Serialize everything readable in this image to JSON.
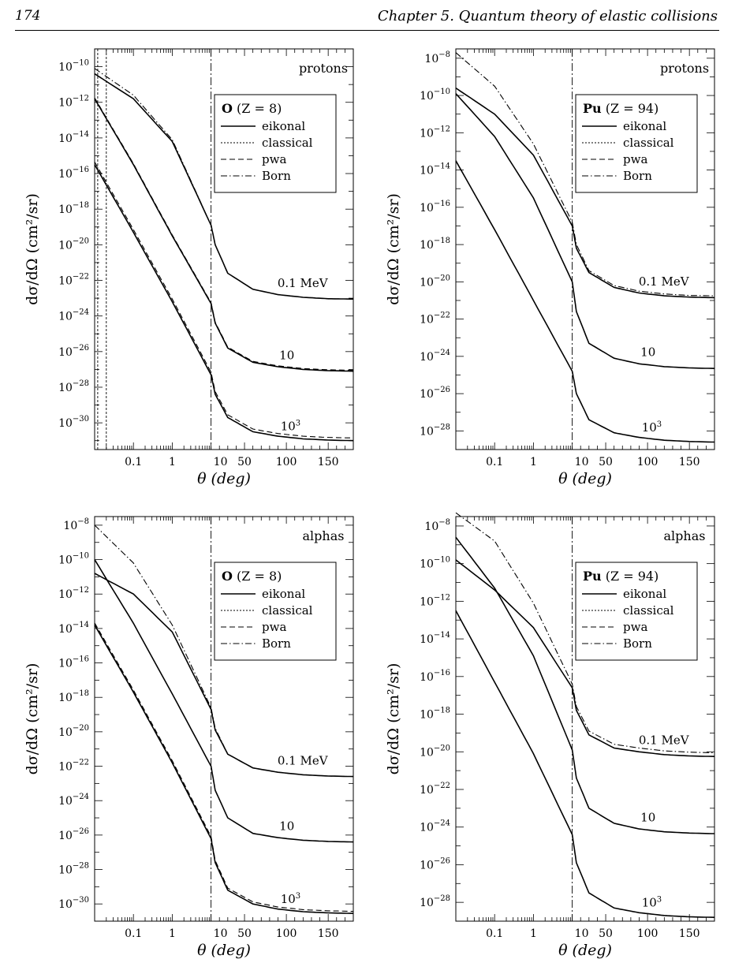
{
  "page": {
    "page_number": "174",
    "running_head": "Chapter 5.  Quantum theory of elastic collisions"
  },
  "legend_entries": [
    {
      "label": "eikonal",
      "style": "solid"
    },
    {
      "label": "classical",
      "style": "dotted"
    },
    {
      "label": "pwa",
      "style": "dashed"
    },
    {
      "label": "Born",
      "style": "dashdot"
    }
  ],
  "chart_data": [
    {
      "type": "line",
      "projectile": "protons",
      "target_symbol": "O",
      "target_z": "(Z = 8)",
      "xlabel": "θ  (deg)",
      "ylabel": "dσ/dΩ  (cm²/sr)",
      "x_scale": "log below 10 deg, linear from 10 to 180 deg",
      "xlim": [
        0.01,
        180
      ],
      "ylim_log10": [
        -31.5,
        -9
      ],
      "x_tick_labels": [
        "0.1",
        "1",
        "10",
        "50",
        "100",
        "150"
      ],
      "y_tick_exponents": [
        -10,
        -12,
        -14,
        -16,
        -18,
        -20,
        -22,
        -24,
        -26,
        -28,
        -30
      ],
      "marker_angle_deg": 10,
      "classical_cutoff_lines_deg": [
        0.012,
        0.02
      ],
      "energy_labels": [
        "0.1 MeV",
        "10",
        "10³"
      ],
      "series": [
        {
          "energy": "0.1 MeV",
          "theta_deg": [
            0.01,
            0.1,
            1,
            10,
            15,
            30,
            60,
            90,
            120,
            150,
            180
          ],
          "eikonal": [
            -10.4,
            -11.8,
            -14.2,
            -18.9,
            -20.0,
            -21.6,
            -22.5,
            -22.8,
            -22.95,
            -23.03,
            -23.05
          ],
          "born": [
            -10.1,
            -11.6,
            -14.1,
            -18.9,
            -20.0,
            -21.6,
            -22.5,
            -22.8,
            -22.95,
            -23.03,
            -23.05
          ],
          "pwa_offset": 0
        },
        {
          "energy": "10",
          "theta_deg": [
            0.01,
            0.1,
            1,
            10,
            15,
            30,
            60,
            90,
            120,
            150,
            180
          ],
          "eikonal": [
            -11.8,
            -15.5,
            -19.5,
            -23.3,
            -24.4,
            -25.8,
            -26.6,
            -26.85,
            -27.0,
            -27.07,
            -27.1
          ],
          "pwa_offset": 0.05
        },
        {
          "energy": "10³",
          "theta_deg": [
            0.01,
            0.1,
            1,
            10,
            15,
            30,
            60,
            90,
            120,
            150,
            180
          ],
          "eikonal": [
            -15.5,
            -19.3,
            -23.2,
            -27.3,
            -28.4,
            -29.7,
            -30.5,
            -30.75,
            -30.9,
            -30.97,
            -31.0
          ],
          "pwa_offset": 0.15
        }
      ]
    },
    {
      "type": "line",
      "projectile": "protons",
      "target_symbol": "Pu",
      "target_z": "(Z = 94)",
      "xlabel": "θ  (deg)",
      "ylabel": "dσ/dΩ  (cm²/sr)",
      "x_scale": "log below 10 deg, linear from 10 to 180 deg",
      "xlim": [
        0.01,
        180
      ],
      "ylim_log10": [
        -29,
        -7.5
      ],
      "x_tick_labels": [
        "0.1",
        "1",
        "10",
        "50",
        "100",
        "150"
      ],
      "y_tick_exponents": [
        -8,
        -10,
        -12,
        -14,
        -16,
        -18,
        -20,
        -22,
        -24,
        -26,
        -28
      ],
      "marker_angle_deg": 10,
      "energy_labels": [
        "0.1 MeV",
        "10",
        "10³"
      ],
      "series": [
        {
          "energy": "0.1 MeV",
          "theta_deg": [
            0.01,
            0.1,
            1,
            10,
            15,
            30,
            60,
            90,
            120,
            150,
            180
          ],
          "eikonal": [
            -9.6,
            -11.0,
            -13.2,
            -17.0,
            -18.2,
            -19.5,
            -20.3,
            -20.6,
            -20.75,
            -20.82,
            -20.85
          ],
          "born": [
            -7.7,
            -9.5,
            -12.6,
            -16.8,
            -18.0,
            -19.4,
            -20.2,
            -20.5,
            -20.65,
            -20.73,
            -20.75
          ],
          "pwa_offset": 0
        },
        {
          "energy": "10",
          "theta_deg": [
            0.01,
            0.1,
            1,
            10,
            15,
            30,
            60,
            90,
            120,
            150,
            180
          ],
          "eikonal": [
            -9.9,
            -12.2,
            -15.5,
            -20.0,
            -21.6,
            -23.3,
            -24.1,
            -24.4,
            -24.55,
            -24.62,
            -24.65
          ],
          "pwa_offset": 0
        },
        {
          "energy": "10³",
          "theta_deg": [
            0.01,
            0.1,
            1,
            10,
            15,
            30,
            60,
            90,
            120,
            150,
            180
          ],
          "eikonal": [
            -13.5,
            -17.2,
            -21.0,
            -24.8,
            -26.0,
            -27.4,
            -28.1,
            -28.35,
            -28.5,
            -28.57,
            -28.6
          ],
          "pwa_offset": 0
        }
      ]
    },
    {
      "type": "line",
      "projectile": "alphas",
      "target_symbol": "O",
      "target_z": "(Z = 8)",
      "xlabel": "θ  (deg)",
      "ylabel": "dσ/dΩ  (cm²/sr)",
      "x_scale": "log below 10 deg, linear from 10 to 180 deg",
      "xlim": [
        0.01,
        180
      ],
      "ylim_log10": [
        -31,
        -7.5
      ],
      "x_tick_labels": [
        "0.1",
        "1",
        "10",
        "50",
        "100",
        "150"
      ],
      "y_tick_exponents": [
        -8,
        -10,
        -12,
        -14,
        -16,
        -18,
        -20,
        -22,
        -24,
        -26,
        -28,
        -30
      ],
      "marker_angle_deg": 10,
      "energy_labels": [
        "0.1 MeV",
        "10",
        "10³"
      ],
      "series": [
        {
          "energy": "0.1 MeV",
          "theta_deg": [
            0.01,
            0.1,
            1,
            10,
            15,
            30,
            60,
            90,
            120,
            150,
            180
          ],
          "eikonal": [
            -10.8,
            -12.0,
            -14.2,
            -18.7,
            -19.9,
            -21.3,
            -22.1,
            -22.35,
            -22.5,
            -22.57,
            -22.6
          ],
          "born": [
            -8.0,
            -10.2,
            -13.8,
            -18.6,
            -19.8,
            -21.3,
            -22.1,
            -22.35,
            -22.5,
            -22.57,
            -22.6
          ],
          "pwa_offset": 0
        },
        {
          "energy": "10",
          "theta_deg": [
            0.01,
            0.1,
            1,
            10,
            15,
            30,
            60,
            90,
            120,
            150,
            180
          ],
          "eikonal": [
            -10.0,
            -13.7,
            -17.8,
            -22.0,
            -23.4,
            -25.0,
            -25.9,
            -26.15,
            -26.3,
            -26.37,
            -26.4
          ],
          "pwa_offset": 0
        },
        {
          "energy": "10³",
          "theta_deg": [
            0.01,
            0.1,
            1,
            10,
            15,
            30,
            60,
            90,
            120,
            150,
            180
          ],
          "eikonal": [
            -13.8,
            -17.7,
            -21.8,
            -26.2,
            -27.6,
            -29.2,
            -30.0,
            -30.3,
            -30.45,
            -30.52,
            -30.55
          ],
          "pwa_offset": 0.12
        }
      ]
    },
    {
      "type": "line",
      "projectile": "alphas",
      "target_symbol": "Pu",
      "target_z": "(Z = 94)",
      "xlabel": "θ  (deg)",
      "ylabel": "dσ/dΩ  (cm²/sr)",
      "x_scale": "log below 10 deg, linear from 10 to 180 deg",
      "xlim": [
        0.01,
        180
      ],
      "ylim_log10": [
        -29,
        -7.5
      ],
      "x_tick_labels": [
        "0.1",
        "1",
        "10",
        "50",
        "100",
        "150"
      ],
      "y_tick_exponents": [
        -8,
        -10,
        -12,
        -14,
        -16,
        -18,
        -20,
        -22,
        -24,
        -26,
        -28
      ],
      "marker_angle_deg": 10,
      "energy_labels": [
        "0.1 MeV",
        "10",
        "10³"
      ],
      "series": [
        {
          "energy": "0.1 MeV",
          "theta_deg": [
            0.01,
            0.1,
            1,
            10,
            15,
            30,
            60,
            90,
            120,
            150,
            180
          ],
          "eikonal": [
            -9.8,
            -11.4,
            -13.4,
            -16.6,
            -17.8,
            -19.1,
            -19.8,
            -20.0,
            -20.15,
            -20.22,
            -20.25
          ],
          "born": [
            -7.3,
            -8.8,
            -12.1,
            -16.4,
            -17.6,
            -18.9,
            -19.6,
            -19.8,
            -19.95,
            -20.02,
            -20.05
          ],
          "pwa_offset": 0
        },
        {
          "energy": "10",
          "theta_deg": [
            0.01,
            0.1,
            1,
            10,
            15,
            30,
            60,
            90,
            120,
            150,
            180
          ],
          "eikonal": [
            -8.6,
            -11.3,
            -14.9,
            -19.9,
            -21.4,
            -23.0,
            -23.8,
            -24.1,
            -24.25,
            -24.32,
            -24.35
          ],
          "pwa_offset": 0
        },
        {
          "energy": "10³",
          "theta_deg": [
            0.01,
            0.1,
            1,
            10,
            15,
            30,
            60,
            90,
            120,
            150,
            180
          ],
          "eikonal": [
            -12.5,
            -16.3,
            -20.1,
            -24.4,
            -25.9,
            -27.5,
            -28.3,
            -28.55,
            -28.7,
            -28.77,
            -28.8
          ],
          "pwa_offset": 0
        }
      ]
    }
  ]
}
